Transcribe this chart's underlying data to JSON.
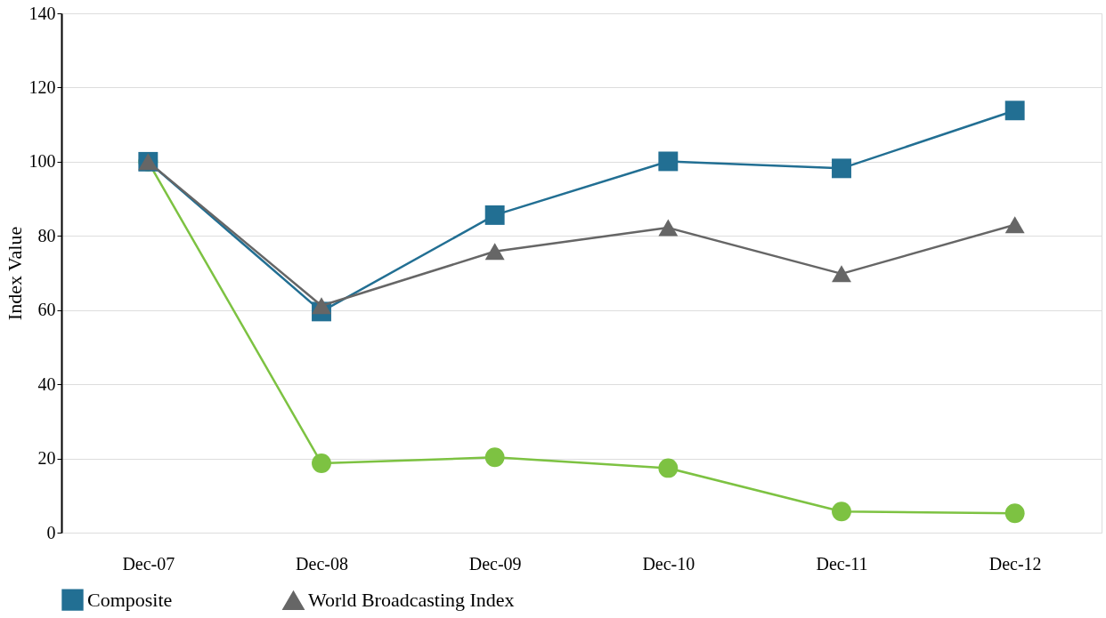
{
  "chart_data": {
    "type": "line",
    "ylabel": "Index Value",
    "categories": [
      "Dec-07",
      "Dec-08",
      "Dec-09",
      "Dec-10",
      "Dec-11",
      "Dec-12"
    ],
    "series": [
      {
        "color": "#7dc242",
        "marker": "circle",
        "values": [
          100,
          18.7,
          20.3,
          17.4,
          5.7,
          5.2
        ]
      },
      {
        "name": "Composite",
        "color": "#226f93",
        "marker": "square",
        "values": [
          100,
          59.6,
          85.6,
          100.1,
          98.2,
          113.8
        ]
      },
      {
        "name": "World Broadcasting Index",
        "color": "#666666",
        "marker": "triangle",
        "values": [
          100,
          61.2,
          75.8,
          82.2,
          69.8,
          83.0
        ]
      }
    ],
    "ylim": [
      0,
      140
    ],
    "yticks": [
      0,
      20,
      40,
      60,
      80,
      100,
      120,
      140
    ],
    "grid": "y",
    "legend": "bottom"
  }
}
